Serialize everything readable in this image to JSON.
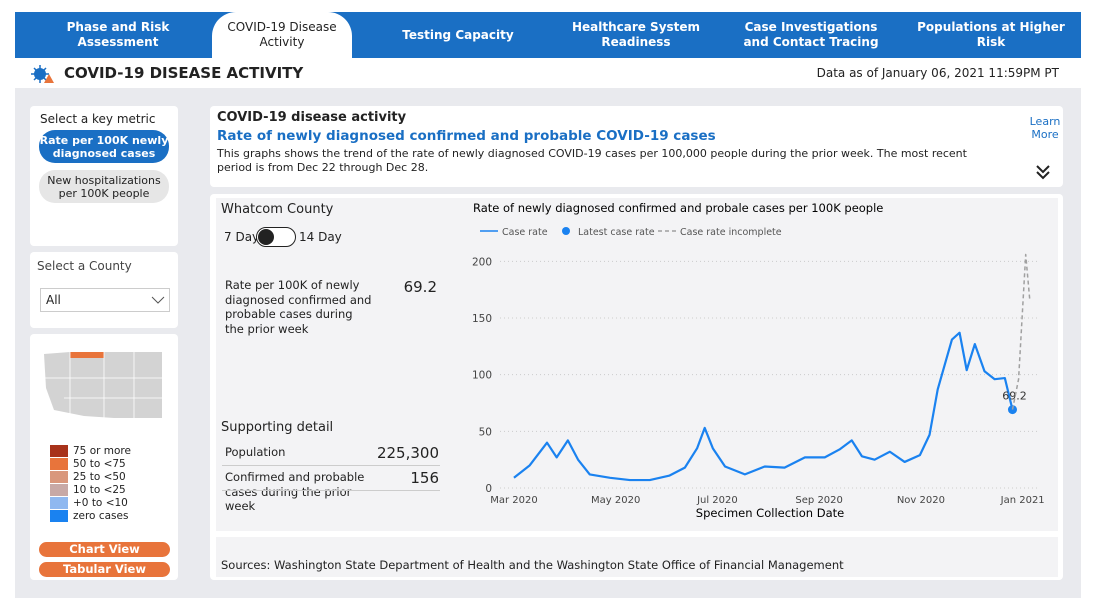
{
  "nav": {
    "tabs": [
      "Phase and Risk Assessment",
      "COVID-19 Disease Activity",
      "Testing Capacity",
      "Healthcare System Readiness",
      "Case Investigations and Contact Tracing",
      "Populations at Higher Risk"
    ],
    "active": 1
  },
  "header": {
    "title": "COVID-19 DISEASE ACTIVITY",
    "data_as_of": "Data as of January 06, 2021 11:59PM PT"
  },
  "sidebar": {
    "metric_label": "Select a key metric",
    "metrics": [
      "Rate per 100K newly diagnosed cases",
      "New hospitalizations per 100K people"
    ],
    "selected_metric": 0,
    "county_label": "Select a County",
    "county": "All",
    "map_legend": [
      {
        "label": "75 or more",
        "color": "#a8321a"
      },
      {
        "label": "50 to <75",
        "color": "#e8743b"
      },
      {
        "label": "25 to <50",
        "color": "#d9977c"
      },
      {
        "label": "10 to <25",
        "color": "#c8a9a6"
      },
      {
        "label": "+0 to <10",
        "color": "#8fb8f0"
      },
      {
        "label": "zero cases",
        "color": "#1a82f0"
      }
    ],
    "buttons": [
      "Chart View",
      "Tabular View"
    ]
  },
  "info": {
    "heading": "COVID-19 disease activity",
    "subtitle": "Rate of newly diagnosed confirmed and probable COVID-19 cases",
    "description": "This graphs shows the trend of the rate of newly diagnosed COVID-19 cases per 100,000 people during the prior week. The most recent period is from Dec 22 through Dec 28.",
    "learn_more": "Learn More"
  },
  "county_panel": {
    "county": "Whatcom County",
    "toggle_left": "7 Day",
    "toggle_right": "14 Day",
    "rate_label": "Rate per 100K of newly diagnosed confirmed and probable cases during the prior week",
    "rate_value": 69.2,
    "supporting_title": "Supporting detail",
    "rows": [
      {
        "label": "Population",
        "value": "225,300"
      },
      {
        "label": "Confirmed and probable cases during the prior week",
        "value": "156"
      }
    ]
  },
  "chart_data": {
    "type": "line",
    "title": "Rate of newly diagnosed confirmed and probale cases per 100K people",
    "x_label": "Specimen Collection Date",
    "xlim": [
      -0.4,
      10.4
    ],
    "xticks": [
      {
        "value": 0,
        "label": "Mar 2020"
      },
      {
        "value": 2,
        "label": "May 2020"
      },
      {
        "value": 4,
        "label": "Jul 2020"
      },
      {
        "value": 6,
        "label": "Sep 2020"
      },
      {
        "value": 8,
        "label": "Nov 2020"
      },
      {
        "value": 10,
        "label": "Jan 2021"
      }
    ],
    "ylim": [
      0,
      210
    ],
    "yticks": [
      0,
      50,
      100,
      150,
      200
    ],
    "grid": true,
    "series": [
      {
        "name": "Case rate",
        "color": "#1a82f0",
        "style": "solid",
        "x": [
          0,
          0.31,
          0.65,
          0.84,
          1.06,
          1.26,
          1.49,
          1.89,
          2.28,
          2.67,
          3.06,
          3.36,
          3.6,
          3.75,
          3.91,
          4.15,
          4.54,
          4.93,
          5.32,
          5.72,
          6.11,
          6.4,
          6.64,
          6.84,
          7.09,
          7.39,
          7.68,
          7.98,
          8.17,
          8.33,
          8.47,
          8.61,
          8.76,
          8.9,
          9.06,
          9.25,
          9.45,
          9.65,
          9.8
        ],
        "values": [
          9,
          20,
          40,
          27,
          42,
          25,
          12,
          9,
          7,
          7,
          11,
          18,
          35,
          53,
          35,
          19,
          12,
          19,
          18,
          27,
          27,
          34,
          42,
          28,
          25,
          32,
          23,
          29,
          47,
          87,
          109,
          131,
          137,
          104,
          127,
          103,
          96,
          97,
          69.2
        ]
      },
      {
        "name": "Latest case rate",
        "color": "#1a82f0",
        "style": "dot",
        "x": [
          9.8
        ],
        "values": [
          69.2
        ]
      },
      {
        "name": "Case rate incomplete",
        "color": "#a0a0a0",
        "style": "dashed",
        "x": [
          9.8,
          9.92,
          10.06,
          10.14
        ],
        "values": [
          69.2,
          96,
          206,
          166
        ]
      }
    ]
  },
  "sources": "Sources: Washington State Department of Health and the Washington State Office of Financial Management"
}
